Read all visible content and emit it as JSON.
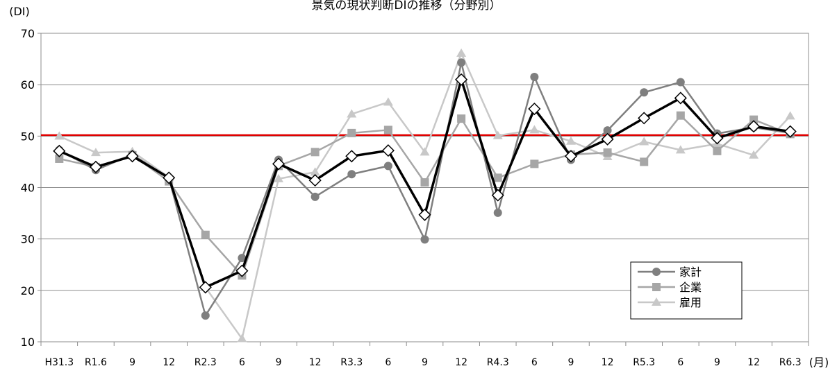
{
  "chart_data": {
    "type": "line",
    "title": "景気の現状判断DIの推移（分野別）",
    "ylabel": "(DI)",
    "xlabel": "(月)",
    "ylim": [
      10,
      70
    ],
    "yticks": [
      10,
      20,
      30,
      40,
      50,
      60,
      70
    ],
    "grid": true,
    "legend_position": "bottom-right",
    "categories": [
      "H31.3",
      "R1.6",
      "9",
      "12",
      "R2.3",
      "6",
      "9",
      "12",
      "R3.3",
      "6",
      "9",
      "12",
      "R4.3",
      "6",
      "9",
      "12",
      "R5.3",
      "6",
      "9",
      "12",
      "R6.3"
    ],
    "reference_line": {
      "value": 50.2,
      "color": "#e00000"
    },
    "series": [
      {
        "name": "家計",
        "marker": "circle",
        "color": "#7f7f7f",
        "values": [
          47.3,
          43.4,
          46.4,
          41.9,
          15.1,
          26.3,
          45.4,
          38.2,
          42.6,
          44.2,
          29.9,
          64.3,
          35.1,
          61.5,
          45.4,
          51.1,
          58.5,
          60.5,
          50.5,
          51.7,
          50.6
        ]
      },
      {
        "name": "企業",
        "marker": "square",
        "color": "#a6a6a6",
        "values": [
          45.6,
          44.0,
          46.3,
          41.2,
          30.8,
          22.9,
          44.2,
          46.9,
          50.6,
          51.2,
          41.0,
          53.4,
          41.9,
          44.6,
          46.4,
          46.8,
          45.0,
          54.0,
          47.1,
          53.2,
          50.4
        ]
      },
      {
        "name": "雇用",
        "marker": "triangle",
        "color": "#c8c8c8",
        "values": [
          50.0,
          46.8,
          47.0,
          42.0,
          20.6,
          10.6,
          41.7,
          43.0,
          54.3,
          56.6,
          46.9,
          66.1,
          50.1,
          51.2,
          49.0,
          46.0,
          48.9,
          47.3,
          48.5,
          46.3,
          53.9
        ]
      },
      {
        "name": "",
        "marker": "diamond",
        "color": "#000000",
        "values": [
          47.1,
          44.0,
          46.1,
          41.9,
          20.6,
          23.8,
          44.6,
          41.4,
          46.1,
          47.2,
          34.7,
          61.0,
          38.5,
          55.3,
          46.1,
          49.4,
          53.5,
          57.4,
          49.6,
          51.9,
          50.9
        ]
      }
    ]
  }
}
